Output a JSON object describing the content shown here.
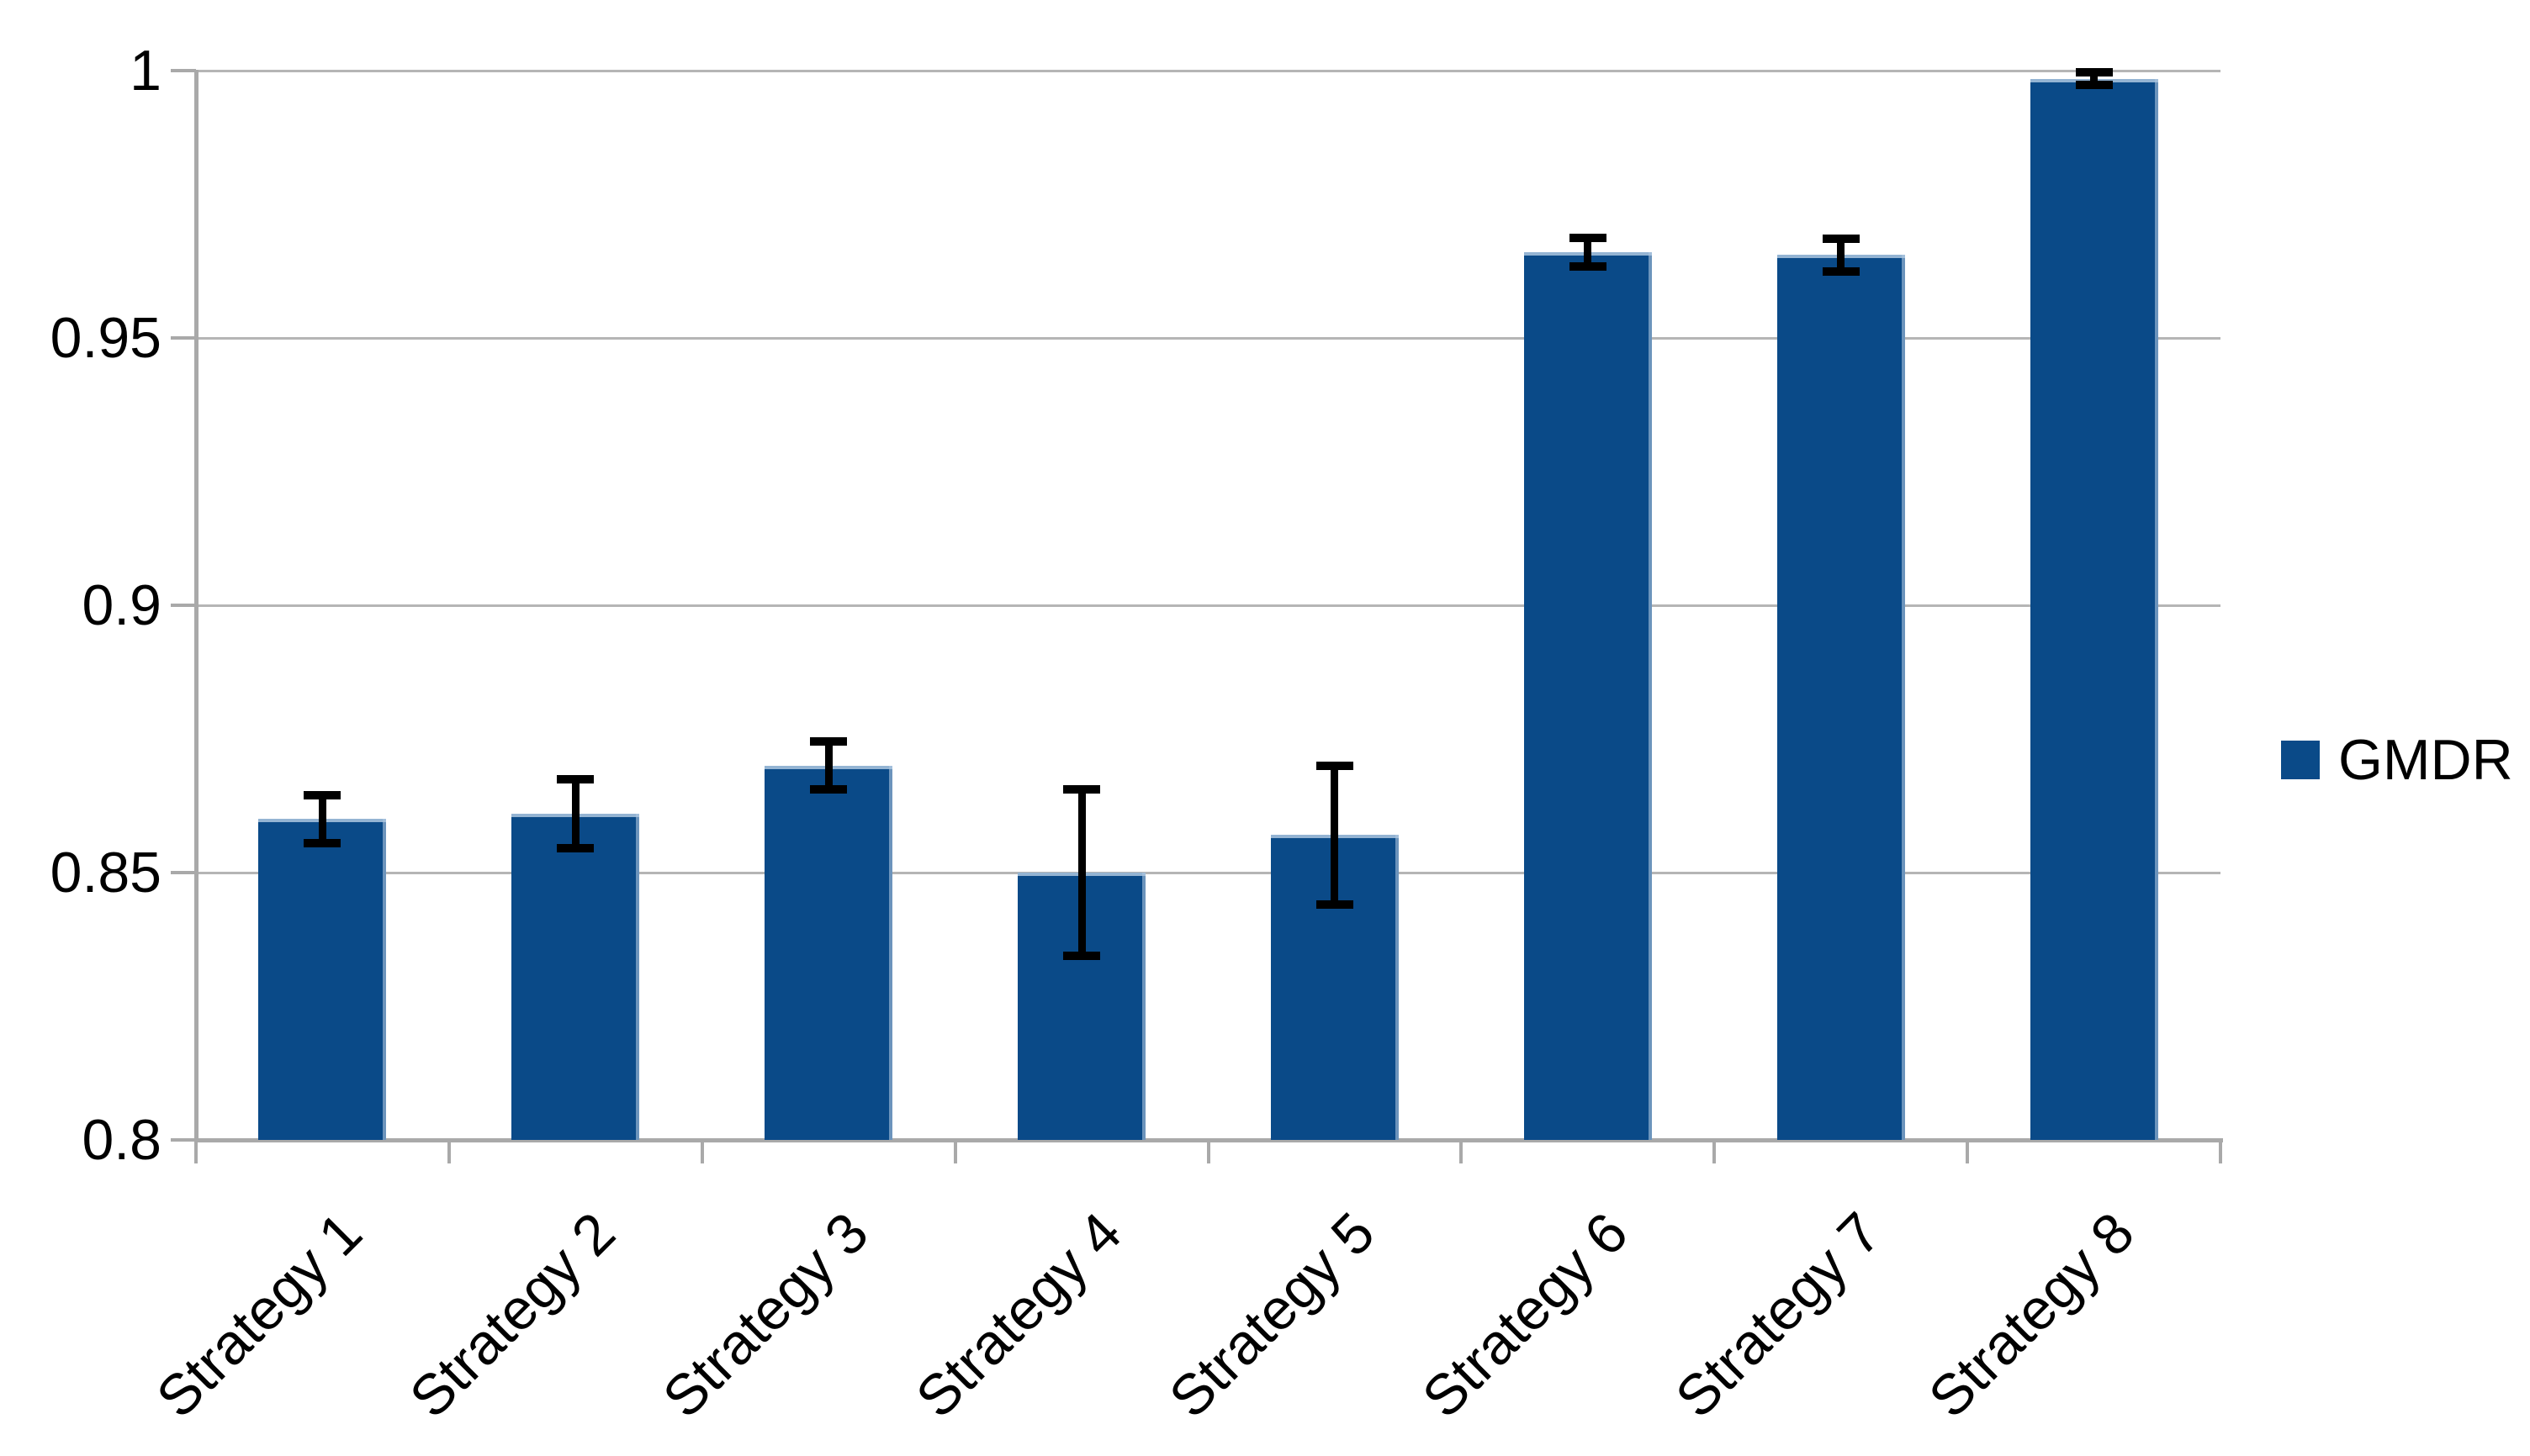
{
  "chart_data": {
    "type": "bar",
    "title": "",
    "xlabel": "",
    "ylabel": "",
    "categories": [
      "Strategy 1",
      "Strategy 2",
      "Strategy 3",
      "Strategy 4",
      "Strategy 5",
      "Strategy 6",
      "Strategy 7",
      "Strategy 8"
    ],
    "series": [
      {
        "name": "GMDR",
        "values": [
          0.86,
          0.861,
          0.87,
          0.85,
          0.857,
          0.966,
          0.9655,
          0.9985
        ],
        "errors": [
          0.0045,
          0.0065,
          0.0045,
          0.0155,
          0.013,
          0.0027,
          0.003,
          0.0012
        ],
        "color": "#0a4a88"
      }
    ],
    "ylim": [
      0.8,
      1.0
    ],
    "yticks": [
      "0.8",
      "0.85",
      "0.9",
      "0.95",
      "1"
    ],
    "grid": true,
    "legend_position": "right",
    "x_label_rotation_deg": -45,
    "colors": {
      "bar": "#0a4a88",
      "error_bar": "#000000",
      "axis": "#a9a9a9",
      "gridline": "#b5b5b5",
      "text": "#000000",
      "background": "#ffffff"
    }
  }
}
